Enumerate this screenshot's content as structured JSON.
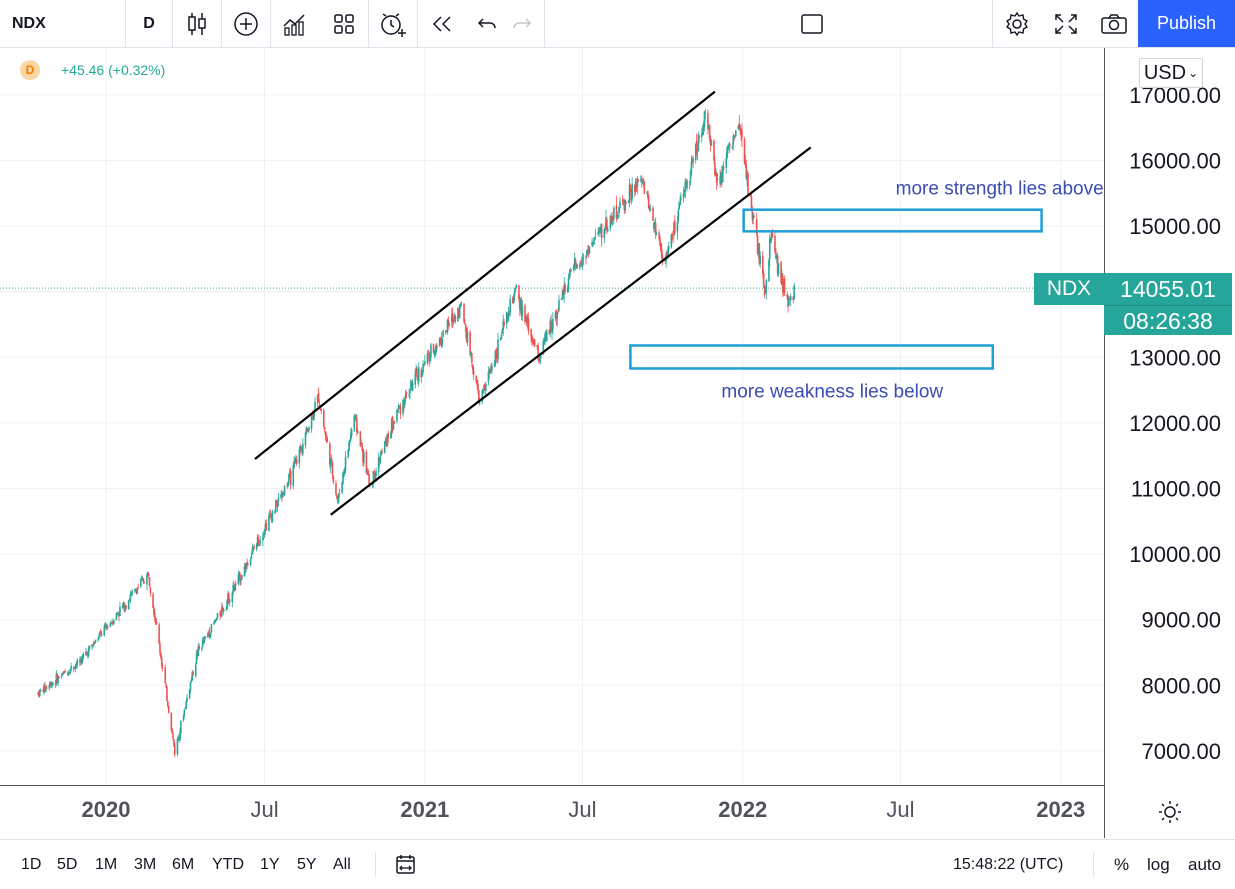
{
  "toolbar": {
    "symbol": "NDX",
    "interval": "D",
    "publish_label": "Publish",
    "icons": [
      "candles-icon",
      "add-indicator-icon",
      "indicators-icon",
      "layout-icon",
      "alert-icon",
      "replay-icon",
      "undo-icon",
      "redo-icon",
      "rectangle-icon",
      "settings-icon",
      "fullscreen-icon",
      "snapshot-icon"
    ]
  },
  "legend": {
    "badge": "D",
    "change": "+45.46 (+0.32%)"
  },
  "price_axis": {
    "currency": "USD",
    "labels": [
      "17000.00",
      "16000.00",
      "15000.00",
      "13000.00",
      "12000.00",
      "11000.00",
      "10000.00",
      "9000.00",
      "8000.00",
      "7000.00"
    ]
  },
  "price_tag": {
    "symbol": "NDX",
    "value": "14055.01",
    "countdown": "08:26:38"
  },
  "time_axis": {
    "labels": [
      "2020",
      "Jul",
      "2021",
      "Jul",
      "2022",
      "Jul",
      "2023"
    ]
  },
  "bottom": {
    "ranges": [
      "1D",
      "5D",
      "1M",
      "3M",
      "6M",
      "YTD",
      "1Y",
      "5Y",
      "All"
    ],
    "clock": "15:48:22 (UTC)",
    "options": [
      "%",
      "log",
      "auto"
    ]
  },
  "colors": {
    "up": "#26a69a",
    "down": "#ef5350",
    "accent": "#2962ff",
    "annotation": "#1e9fd6",
    "annotation_text": "#3a4db3"
  },
  "chart_data": {
    "type": "candlestick",
    "symbol": "NDX",
    "timeframe": "D",
    "ylim": [
      6700,
      17500
    ],
    "xlim": [
      "2019-10-15",
      "2023-02-20"
    ],
    "last_price": 14055.01,
    "close_path": [
      {
        "x": "2019-10-15",
        "y": 7880
      },
      {
        "x": "2019-12-01",
        "y": 8350
      },
      {
        "x": "2020-02-19",
        "y": 9700
      },
      {
        "x": "2020-03-20",
        "y": 6990
      },
      {
        "x": "2020-04-15",
        "y": 8500
      },
      {
        "x": "2020-06-01",
        "y": 9600
      },
      {
        "x": "2020-07-01",
        "y": 10400
      },
      {
        "x": "2020-08-01",
        "y": 11200
      },
      {
        "x": "2020-09-01",
        "y": 12400
      },
      {
        "x": "2020-09-23",
        "y": 10800
      },
      {
        "x": "2020-10-12",
        "y": 12100
      },
      {
        "x": "2020-10-30",
        "y": 11050
      },
      {
        "x": "2020-12-01",
        "y": 12200
      },
      {
        "x": "2021-01-01",
        "y": 12900
      },
      {
        "x": "2021-02-12",
        "y": 13800
      },
      {
        "x": "2021-03-05",
        "y": 12300
      },
      {
        "x": "2021-04-15",
        "y": 14000
      },
      {
        "x": "2021-05-12",
        "y": 13000
      },
      {
        "x": "2021-06-15",
        "y": 14200
      },
      {
        "x": "2021-07-15",
        "y": 14800
      },
      {
        "x": "2021-09-07",
        "y": 15700
      },
      {
        "x": "2021-10-04",
        "y": 14450
      },
      {
        "x": "2021-11-19",
        "y": 16700
      },
      {
        "x": "2021-12-03",
        "y": 15700
      },
      {
        "x": "2021-12-27",
        "y": 16550
      },
      {
        "x": "2022-01-10",
        "y": 15400
      },
      {
        "x": "2022-01-27",
        "y": 13900
      },
      {
        "x": "2022-02-02",
        "y": 14900
      },
      {
        "x": "2022-02-14",
        "y": 14200
      },
      {
        "x": "2022-02-24",
        "y": 13800
      },
      {
        "x": "2022-03-01",
        "y": 14055
      }
    ],
    "channel": [
      {
        "name": "upper",
        "points": [
          {
            "x": "2020-06-20",
            "y": 11450
          },
          {
            "x": "2021-11-30",
            "y": 17050
          }
        ]
      },
      {
        "name": "lower",
        "points": [
          {
            "x": "2020-09-15",
            "y": 10600
          },
          {
            "x": "2022-03-20",
            "y": 16200
          }
        ]
      }
    ],
    "zones": [
      {
        "label": "more strength lies above",
        "price_range": [
          14920,
          15250
        ],
        "x_range": [
          "2022-01-02",
          "2022-12-10"
        ]
      },
      {
        "label": "more weakness lies below",
        "price_range": [
          12830,
          13180
        ],
        "x_range": [
          "2021-08-25",
          "2022-10-15"
        ]
      }
    ]
  }
}
